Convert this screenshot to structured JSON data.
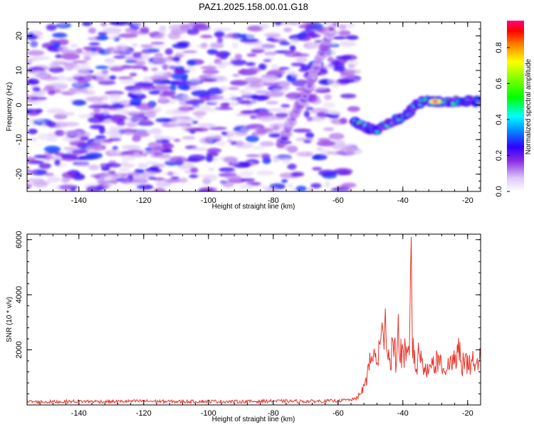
{
  "title": "PAZ1.2025.158.00.01.G18",
  "chart_data": [
    {
      "type": "heatmap",
      "xlabel": "Height of straight line (km)",
      "ylabel": "Frequency (Hz)",
      "xlim": [
        -156,
        -16
      ],
      "ylim": [
        -25,
        24
      ],
      "xticks": [
        -140,
        -120,
        -100,
        -80,
        -60,
        -40,
        -20
      ],
      "yticks": [
        -20,
        -10,
        0,
        10,
        20
      ],
      "colorbar": {
        "label": "Normalized spectral amplitude",
        "range": [
          0,
          0.95
        ],
        "ticks": [
          0.0,
          0.2,
          0.4,
          0.6,
          0.8
        ]
      },
      "noise_region": {
        "x_range": [
          -156,
          -55
        ],
        "freq_range": [
          -25,
          24
        ],
        "amplitude_range": [
          0.05,
          0.3
        ]
      },
      "ridges": [
        {
          "name": "",
          "points": [
            [
              -78,
              -12
            ],
            [
              -76,
              -8
            ],
            [
              -74,
              -4
            ],
            [
              -72,
              0
            ],
            [
              -70,
              3
            ],
            [
              -68,
              8
            ],
            [
              -66,
              13
            ],
            [
              -64,
              17
            ],
            [
              -63,
              20
            ],
            [
              -62,
              22
            ]
          ],
          "amplitude": 0.28
        },
        {
          "name": "",
          "points": [
            [
              -55,
              -5
            ],
            [
              -52,
              -6
            ],
            [
              -50,
              -7
            ],
            [
              -47,
              -7
            ],
            [
              -44,
              -5
            ],
            [
              -41,
              -4
            ],
            [
              -38,
              -2
            ],
            [
              -36,
              0
            ],
            [
              -34,
              1
            ],
            [
              -30,
              1
            ],
            [
              -26,
              1
            ],
            [
              -22,
              1
            ],
            [
              -18,
              1
            ],
            [
              -16,
              1
            ]
          ],
          "amplitude": 0.6
        }
      ],
      "peak": {
        "x": -30,
        "y": 1,
        "amplitude": 0.95
      }
    },
    {
      "type": "line",
      "xlabel": "Height of straight line (km)",
      "ylabel": "SNR (10 * v/v)",
      "xlim": [
        -156,
        -16
      ],
      "ylim": [
        0,
        6200
      ],
      "xticks": [
        -140,
        -120,
        -100,
        -80,
        -60,
        -40,
        -20
      ],
      "yticks": [
        2000,
        4000,
        6000
      ],
      "series": [
        {
          "name": "",
          "color": "#e8352b",
          "x": [
            -156,
            -150,
            -140,
            -130,
            -120,
            -110,
            -100,
            -90,
            -80,
            -70,
            -60,
            -55,
            -53,
            -52,
            -51,
            -50,
            -49,
            -48,
            -47,
            -46,
            -45.5,
            -45,
            -44,
            -43,
            -42,
            -41.5,
            -41,
            -40,
            -39,
            -38,
            -37.5,
            -37,
            -36.5,
            -36,
            -35,
            -34,
            -33,
            -32,
            -31,
            -30,
            -29,
            -28,
            -27,
            -26,
            -25,
            -24,
            -23,
            -22,
            -21,
            -20,
            -19,
            -18,
            -17,
            -16
          ],
          "y": [
            120,
            110,
            130,
            120,
            140,
            120,
            130,
            120,
            140,
            130,
            150,
            200,
            400,
            700,
            1100,
            1500,
            1900,
            1500,
            2200,
            2500,
            3500,
            2000,
            1700,
            2300,
            1500,
            3300,
            1700,
            2100,
            1600,
            1800,
            6100,
            1700,
            2000,
            1200,
            1900,
            1700,
            1500,
            1200,
            1700,
            1400,
            1800,
            1300,
            1200,
            1700,
            1400,
            1500,
            1900,
            1600,
            1300,
            1800,
            1400,
            1500,
            1700,
            1600
          ]
        }
      ]
    }
  ]
}
